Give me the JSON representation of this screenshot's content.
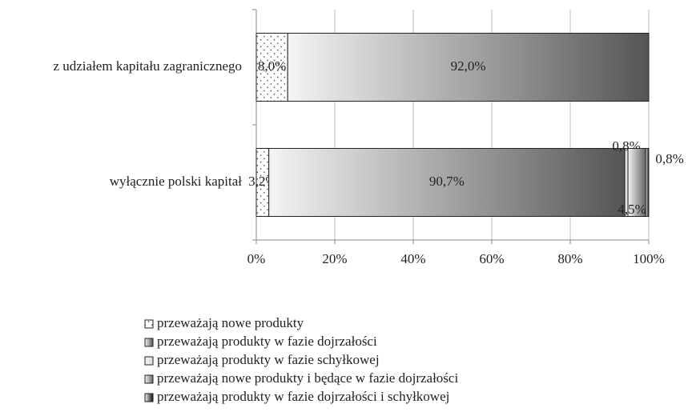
{
  "chart_data": {
    "type": "stacked-bar-horizontal",
    "categories": [
      "z udziałem kapitału zagranicznego",
      "wyłącznie polski kapitał"
    ],
    "series": [
      {
        "name": "przeważają nowe produkty",
        "color": "#ffffff",
        "pattern": "dots",
        "values": [
          8.0,
          3.2
        ],
        "value_labels": [
          "8,0%",
          "3,2%"
        ]
      },
      {
        "name": "przeważają produkty w fazie dojrzałości",
        "color": "#555555",
        "values": [
          92.0,
          90.7
        ],
        "value_labels": [
          "92,0%",
          "90,7%"
        ]
      },
      {
        "name": "przeważają produkty w fazie schyłkowej",
        "color": "#d8d8d8",
        "values": [
          null,
          0.8
        ],
        "value_labels": [
          null,
          "0,8%"
        ]
      },
      {
        "name": "przeważają nowe produkty i będące w fazie dojrzałości",
        "color": "#666666",
        "values": [
          null,
          4.5
        ],
        "value_labels": [
          null,
          "4,5%"
        ]
      },
      {
        "name": "przeważają produkty w fazie dojrzałości i schyłkowej",
        "color": "#111111",
        "values": [
          null,
          0.8
        ],
        "value_labels": [
          null,
          "0,8%"
        ]
      }
    ],
    "xlim": [
      0,
      100
    ],
    "xticks": [
      {
        "value": 0,
        "label": "0%"
      },
      {
        "value": 20,
        "label": "20%"
      },
      {
        "value": 40,
        "label": "40%"
      },
      {
        "value": 60,
        "label": "60%"
      },
      {
        "value": 80,
        "label": "80%"
      },
      {
        "value": 100,
        "label": "100%"
      }
    ],
    "grid": true,
    "legend": "bottom"
  }
}
